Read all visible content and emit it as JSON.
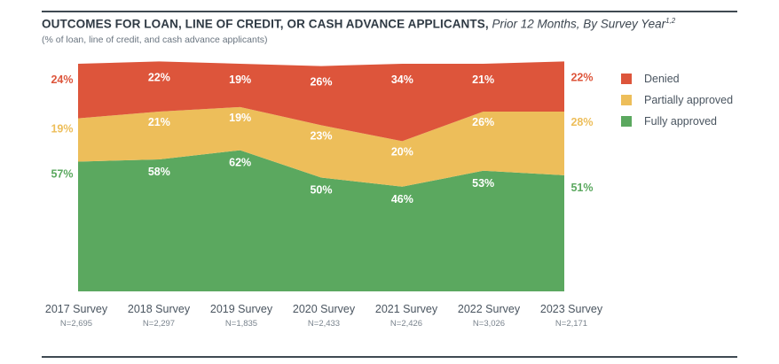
{
  "title": {
    "main": "OUTCOMES FOR LOAN, LINE OF CREDIT, OR CASH ADVANCE APPLICANTS,",
    "sub": "Prior 12 Months, By Survey Year",
    "footnote": "1,2"
  },
  "subtitle": "(% of loan, line of credit, and cash advance applicants)",
  "legend": [
    {
      "label": "Denied",
      "color": "#dd553b"
    },
    {
      "label": "Partially approved",
      "color": "#edbe5a"
    },
    {
      "label": "Fully approved",
      "color": "#5ba85f"
    }
  ],
  "chart_data": {
    "type": "area",
    "stacked": true,
    "categories": [
      "2017 Survey",
      "2018 Survey",
      "2019 Survey",
      "2020 Survey",
      "2021 Survey",
      "2022 Survey",
      "2023 Survey"
    ],
    "sample_sizes": [
      "N=2,695",
      "N=2,297",
      "N=1,835",
      "N=2,433",
      "N=2,426",
      "N=3,026",
      "N=2,171"
    ],
    "ylim": [
      0,
      100
    ],
    "grid": false,
    "legend_position": "right",
    "series": [
      {
        "name": "Fully approved",
        "values": [
          57,
          58,
          62,
          50,
          46,
          53,
          51
        ],
        "labels": [
          "57%",
          "58%",
          "62%",
          "50%",
          "46%",
          "53%",
          "51%"
        ],
        "color": "#5ba85f"
      },
      {
        "name": "Partially approved",
        "values": [
          19,
          21,
          19,
          23,
          20,
          26,
          28
        ],
        "labels": [
          "19%",
          "21%",
          "19%",
          "23%",
          "20%",
          "26%",
          "28%"
        ],
        "color": "#edbe5a"
      },
      {
        "name": "Denied",
        "values": [
          24,
          22,
          19,
          26,
          34,
          21,
          22
        ],
        "labels": [
          "24%",
          "22%",
          "19%",
          "26%",
          "34%",
          "21%",
          "22%"
        ],
        "color": "#dd553b"
      }
    ]
  }
}
